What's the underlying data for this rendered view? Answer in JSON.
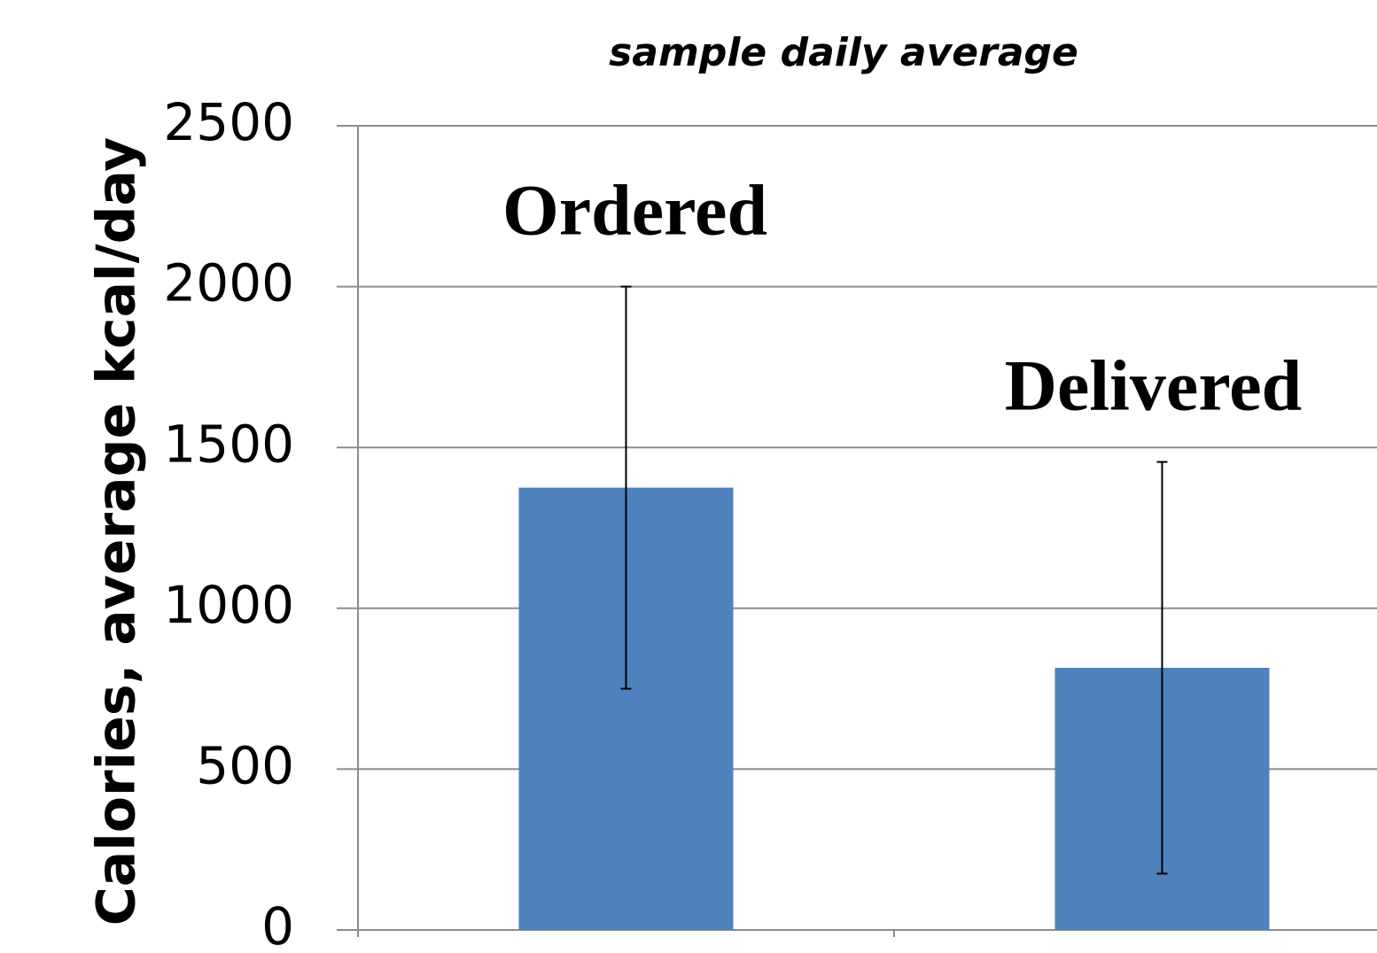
{
  "chart_data": {
    "type": "bar",
    "title": "sample daily average",
    "ylabel": "Calories, average kcal/day",
    "categories": [
      "Ordered",
      "Delivered"
    ],
    "values": [
      1375,
      815
    ],
    "errors": [
      625,
      640
    ],
    "color": "#4f81bd",
    "ylim": [
      0,
      2500
    ],
    "yticks": [
      0,
      500,
      1000,
      1500,
      2000,
      2500
    ],
    "grid": true
  }
}
